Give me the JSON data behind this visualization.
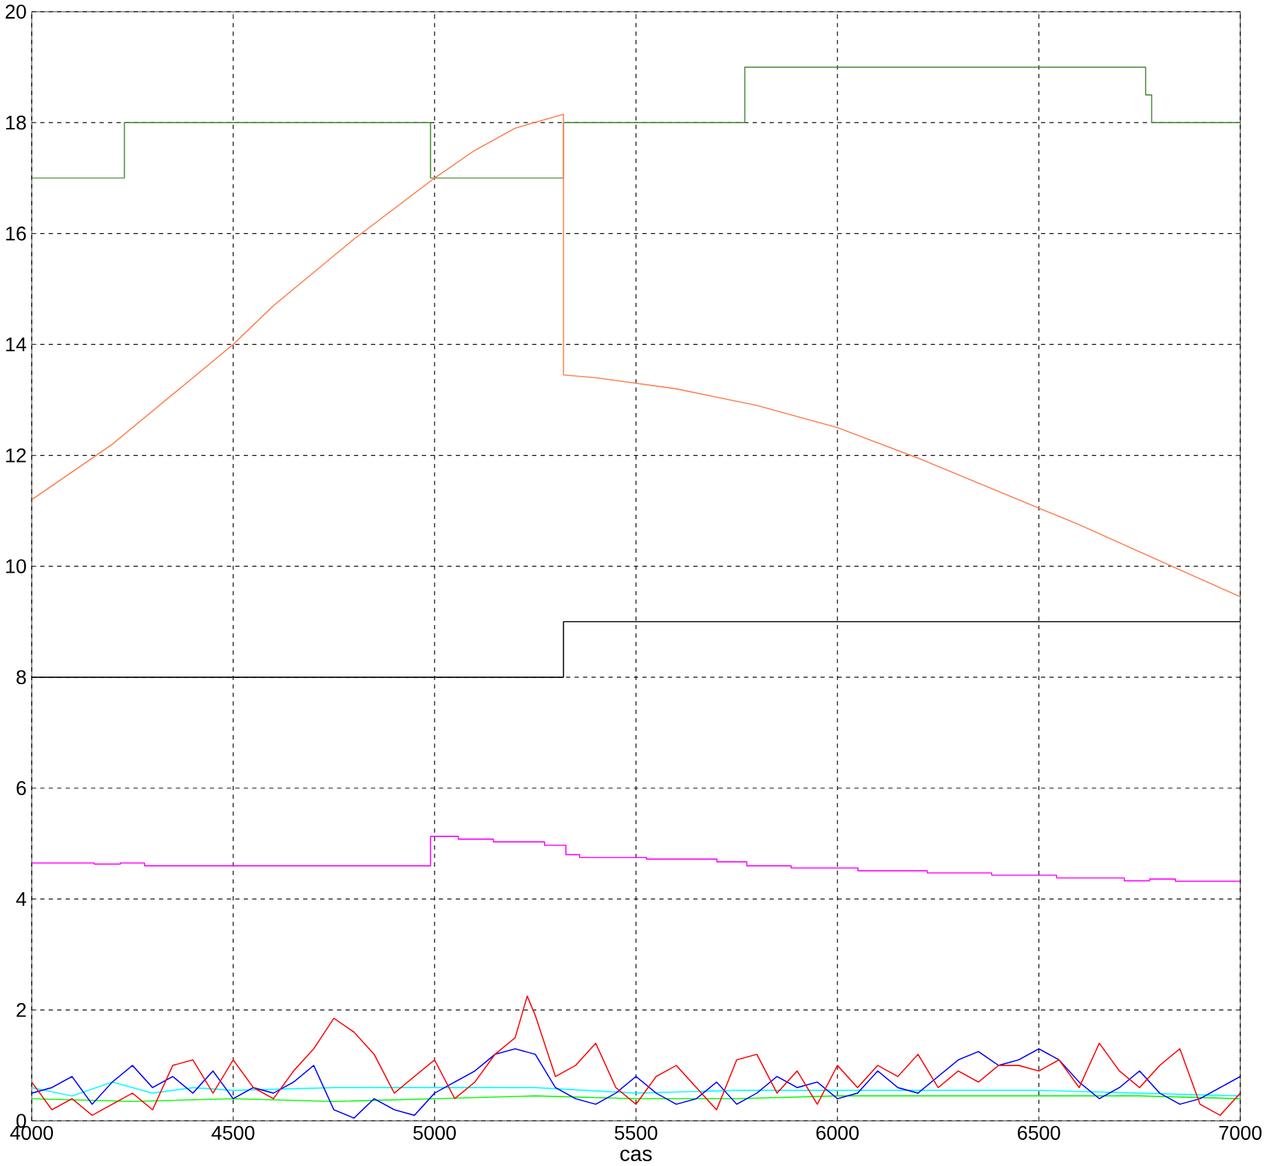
{
  "chart_data": {
    "type": "line",
    "xlabel": "cas",
    "xlim": [
      4000,
      7000
    ],
    "ylim": [
      0,
      20
    ],
    "xticks": [
      4000,
      4500,
      5000,
      5500,
      6000,
      6500,
      7000
    ],
    "yticks": [
      0,
      2,
      4,
      6,
      8,
      10,
      12,
      14,
      16,
      18,
      20
    ],
    "grid": true,
    "marker": "none",
    "line_style": "solid",
    "series": [
      {
        "type": "step",
        "color": "#4b8b3b",
        "x": [
          4000,
          4230,
          4990,
          5320,
          5770,
          6765,
          6780,
          7000
        ],
        "values": [
          17,
          18,
          17,
          18,
          19,
          18.5,
          18,
          18
        ]
      },
      {
        "type": "line",
        "color": "#ff7f50",
        "x": [
          4000,
          4200,
          4400,
          4500,
          4600,
          4800,
          5000,
          5100,
          5200,
          5320,
          5320,
          5400,
          5500,
          5600,
          5700,
          5800,
          5900,
          6000,
          6200,
          6400,
          6600,
          6800,
          7000
        ],
        "values": [
          11.2,
          12.2,
          13.4,
          14.0,
          14.7,
          15.9,
          17.0,
          17.5,
          17.9,
          18.15,
          13.45,
          13.4,
          13.3,
          13.2,
          13.05,
          12.9,
          12.7,
          12.5,
          11.95,
          11.35,
          10.75,
          10.1,
          9.45
        ]
      },
      {
        "type": "step",
        "color": "#000000",
        "x": [
          4000,
          5320,
          7000
        ],
        "values": [
          8,
          9,
          9
        ]
      },
      {
        "type": "step",
        "color": "#ff00ff",
        "x": [
          4000,
          4155,
          4220,
          4280,
          4990,
          5059,
          5146,
          5273,
          5326,
          5360,
          5526,
          5701,
          5775,
          5885,
          6051,
          6223,
          6383,
          6544,
          6712,
          6775,
          6839,
          7000
        ],
        "values": [
          4.65,
          4.63,
          4.65,
          4.6,
          5.13,
          5.08,
          5.03,
          4.97,
          4.8,
          4.75,
          4.72,
          4.67,
          4.6,
          4.56,
          4.51,
          4.47,
          4.43,
          4.38,
          4.33,
          4.36,
          4.32,
          4.32
        ]
      },
      {
        "type": "line",
        "color": "#00ff00",
        "x": [
          4000,
          4250,
          4500,
          4750,
          5000,
          5250,
          5500,
          5750,
          6000,
          6250,
          6500,
          6750,
          7000
        ],
        "values": [
          0.4,
          0.35,
          0.4,
          0.35,
          0.4,
          0.45,
          0.4,
          0.4,
          0.45,
          0.45,
          0.45,
          0.45,
          0.4
        ]
      },
      {
        "type": "line",
        "color": "#00ffff",
        "x": [
          4000,
          4100,
          4200,
          4300,
          4400,
          4500,
          4750,
          5000,
          5250,
          5500,
          5750,
          6000,
          6250,
          6500,
          6750,
          7000
        ],
        "values": [
          0.6,
          0.45,
          0.7,
          0.5,
          0.6,
          0.55,
          0.6,
          0.6,
          0.6,
          0.5,
          0.55,
          0.55,
          0.55,
          0.55,
          0.5,
          0.45
        ]
      },
      {
        "type": "line",
        "color": "#0000ff",
        "x": [
          4000,
          4050,
          4100,
          4150,
          4200,
          4250,
          4300,
          4350,
          4400,
          4450,
          4500,
          4550,
          4600,
          4650,
          4700,
          4750,
          4800,
          4850,
          4900,
          4950,
          5000,
          5050,
          5100,
          5150,
          5200,
          5250,
          5300,
          5350,
          5400,
          5450,
          5500,
          5550,
          5600,
          5650,
          5700,
          5750,
          5800,
          5850,
          5900,
          5950,
          6000,
          6050,
          6100,
          6150,
          6200,
          6250,
          6300,
          6350,
          6400,
          6450,
          6500,
          6550,
          6600,
          6650,
          6700,
          6750,
          6800,
          6850,
          6900,
          6950,
          7000
        ],
        "values": [
          0.5,
          0.6,
          0.8,
          0.3,
          0.7,
          1.0,
          0.6,
          0.8,
          0.5,
          0.9,
          0.4,
          0.6,
          0.5,
          0.7,
          1.0,
          0.2,
          0.05,
          0.4,
          0.2,
          0.1,
          0.5,
          0.7,
          0.9,
          1.2,
          1.3,
          1.2,
          0.6,
          0.4,
          0.3,
          0.5,
          0.8,
          0.5,
          0.3,
          0.4,
          0.7,
          0.3,
          0.5,
          0.8,
          0.6,
          0.7,
          0.4,
          0.5,
          0.9,
          0.6,
          0.5,
          0.8,
          1.1,
          1.25,
          1.0,
          1.1,
          1.3,
          1.1,
          0.7,
          0.4,
          0.6,
          0.9,
          0.5,
          0.3,
          0.4,
          0.6,
          0.8
        ]
      },
      {
        "type": "line",
        "color": "#ff0000",
        "x": [
          4000,
          4050,
          4100,
          4150,
          4200,
          4250,
          4300,
          4350,
          4400,
          4450,
          4500,
          4550,
          4600,
          4650,
          4700,
          4750,
          4800,
          4850,
          4900,
          4950,
          5000,
          5050,
          5100,
          5150,
          5200,
          5230,
          5250,
          5300,
          5350,
          5400,
          5450,
          5500,
          5550,
          5600,
          5650,
          5700,
          5750,
          5800,
          5850,
          5900,
          5950,
          6000,
          6050,
          6100,
          6150,
          6200,
          6250,
          6300,
          6350,
          6400,
          6450,
          6500,
          6550,
          6600,
          6650,
          6700,
          6750,
          6800,
          6850,
          6900,
          6950,
          7000
        ],
        "values": [
          0.7,
          0.2,
          0.4,
          0.1,
          0.3,
          0.5,
          0.2,
          1.0,
          1.1,
          0.5,
          1.1,
          0.6,
          0.4,
          0.9,
          1.3,
          1.85,
          1.6,
          1.2,
          0.5,
          0.8,
          1.1,
          0.4,
          0.7,
          1.2,
          1.5,
          2.25,
          1.9,
          0.8,
          1.0,
          1.4,
          0.6,
          0.3,
          0.8,
          1.0,
          0.6,
          0.2,
          1.1,
          1.2,
          0.5,
          0.9,
          0.3,
          1.0,
          0.6,
          1.0,
          0.8,
          1.2,
          0.6,
          0.9,
          0.7,
          1.0,
          1.0,
          0.9,
          1.1,
          0.6,
          1.4,
          0.9,
          0.6,
          1.0,
          1.3,
          0.3,
          0.1,
          0.5
        ]
      }
    ]
  }
}
